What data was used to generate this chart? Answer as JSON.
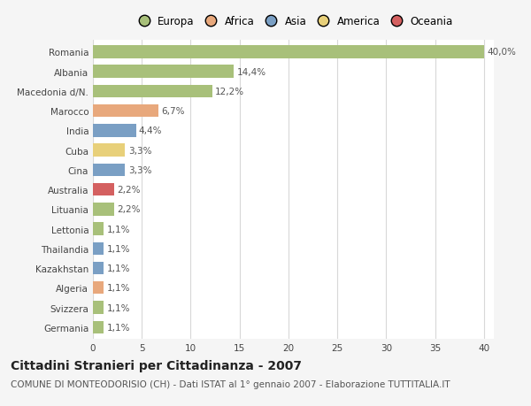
{
  "countries": [
    "Romania",
    "Albania",
    "Macedonia d/N.",
    "Marocco",
    "India",
    "Cuba",
    "Cina",
    "Australia",
    "Lituania",
    "Lettonia",
    "Thailandia",
    "Kazakhstan",
    "Algeria",
    "Svizzera",
    "Germania"
  ],
  "values": [
    40.0,
    14.4,
    12.2,
    6.7,
    4.4,
    3.3,
    3.3,
    2.2,
    2.2,
    1.1,
    1.1,
    1.1,
    1.1,
    1.1,
    1.1
  ],
  "labels": [
    "40,0%",
    "14,4%",
    "12,2%",
    "6,7%",
    "4,4%",
    "3,3%",
    "3,3%",
    "2,2%",
    "2,2%",
    "1,1%",
    "1,1%",
    "1,1%",
    "1,1%",
    "1,1%",
    "1,1%"
  ],
  "colors": [
    "#a8c07a",
    "#a8c07a",
    "#a8c07a",
    "#e8a87c",
    "#7a9fc4",
    "#e8d07a",
    "#7a9fc4",
    "#d46060",
    "#a8c07a",
    "#a8c07a",
    "#7a9fc4",
    "#7a9fc4",
    "#e8a87c",
    "#a8c07a",
    "#a8c07a"
  ],
  "legend_labels": [
    "Europa",
    "Africa",
    "Asia",
    "America",
    "Oceania"
  ],
  "legend_colors": [
    "#a8c07a",
    "#e8a87c",
    "#7a9fc4",
    "#e8d07a",
    "#d46060"
  ],
  "xlim": [
    0,
    41
  ],
  "xticks": [
    0,
    5,
    10,
    15,
    20,
    25,
    30,
    35,
    40
  ],
  "title": "Cittadini Stranieri per Cittadinanza - 2007",
  "subtitle": "COMUNE DI MONTEODORISIO (CH) - Dati ISTAT al 1° gennaio 2007 - Elaborazione TUTTITALIA.IT",
  "bg_color": "#f5f5f5",
  "plot_bg_color": "#ffffff",
  "grid_color": "#d8d8d8",
  "bar_height": 0.65,
  "title_fontsize": 10,
  "subtitle_fontsize": 7.5,
  "label_fontsize": 7.5,
  "tick_fontsize": 7.5,
  "legend_fontsize": 8.5
}
